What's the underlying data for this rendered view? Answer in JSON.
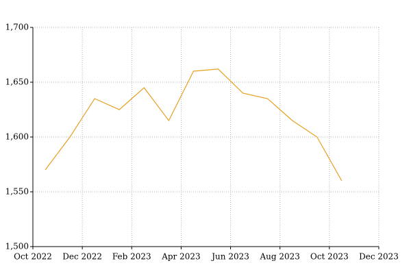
{
  "chart_data": {
    "type": "line",
    "x": [
      "2022-10",
      "2022-11",
      "2022-12",
      "2023-01",
      "2023-02",
      "2023-03",
      "2023-04",
      "2023-05",
      "2023-06",
      "2023-07",
      "2023-08",
      "2023-09",
      "2023-10"
    ],
    "series": [
      {
        "color": "#e8a020",
        "values": [
          1570,
          1600,
          1635,
          1625,
          1645,
          1615,
          1660,
          1662,
          1640,
          1635,
          1615,
          1600,
          1560
        ]
      }
    ],
    "xlim": [
      "2022-10",
      "2023-12"
    ],
    "xticks": [
      {
        "value": "2022-10",
        "label": "Oct 2022"
      },
      {
        "value": "2022-12",
        "label": "Dec 2022"
      },
      {
        "value": "2023-02",
        "label": "Feb 2023"
      },
      {
        "value": "2023-04",
        "label": "Apr 2023"
      },
      {
        "value": "2023-06",
        "label": "Jun 2023"
      },
      {
        "value": "2023-08",
        "label": "Aug 2023"
      },
      {
        "value": "2023-10",
        "label": "Oct 2023"
      },
      {
        "value": "2023-12",
        "label": "Dec 2023"
      }
    ],
    "ylim": [
      1500,
      1700
    ],
    "yticks": [
      {
        "value": 1500,
        "label": "1,500"
      },
      {
        "value": 1550,
        "label": "1,550"
      },
      {
        "value": 1600,
        "label": "1,600"
      },
      {
        "value": 1650,
        "label": "1,650"
      },
      {
        "value": 1700,
        "label": "1,700"
      }
    ],
    "grid": true
  }
}
